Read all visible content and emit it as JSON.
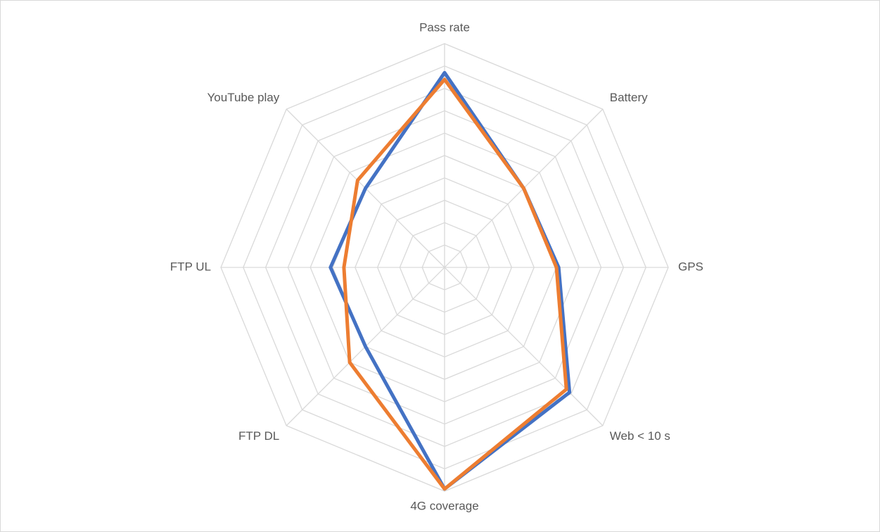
{
  "chart_data": {
    "type": "radar",
    "categories": [
      "Pass rate",
      "Battery",
      "GPS",
      "Web < 10 s",
      "4G coverage",
      "FTP DL",
      "FTP UL",
      "YouTube play"
    ],
    "series": [
      {
        "color": "#4472c4",
        "values": [
          8.7,
          5.0,
          5.1,
          7.9,
          9.9,
          5.0,
          5.1,
          5.0
        ]
      },
      {
        "color": "#ed7d31",
        "values": [
          8.4,
          5.0,
          5.0,
          7.7,
          9.9,
          6.0,
          4.5,
          5.5
        ]
      }
    ],
    "rlim": [
      0,
      10
    ],
    "rticks": [
      1,
      2,
      3,
      4,
      5,
      6,
      7,
      8,
      9,
      10
    ],
    "grid": true
  }
}
